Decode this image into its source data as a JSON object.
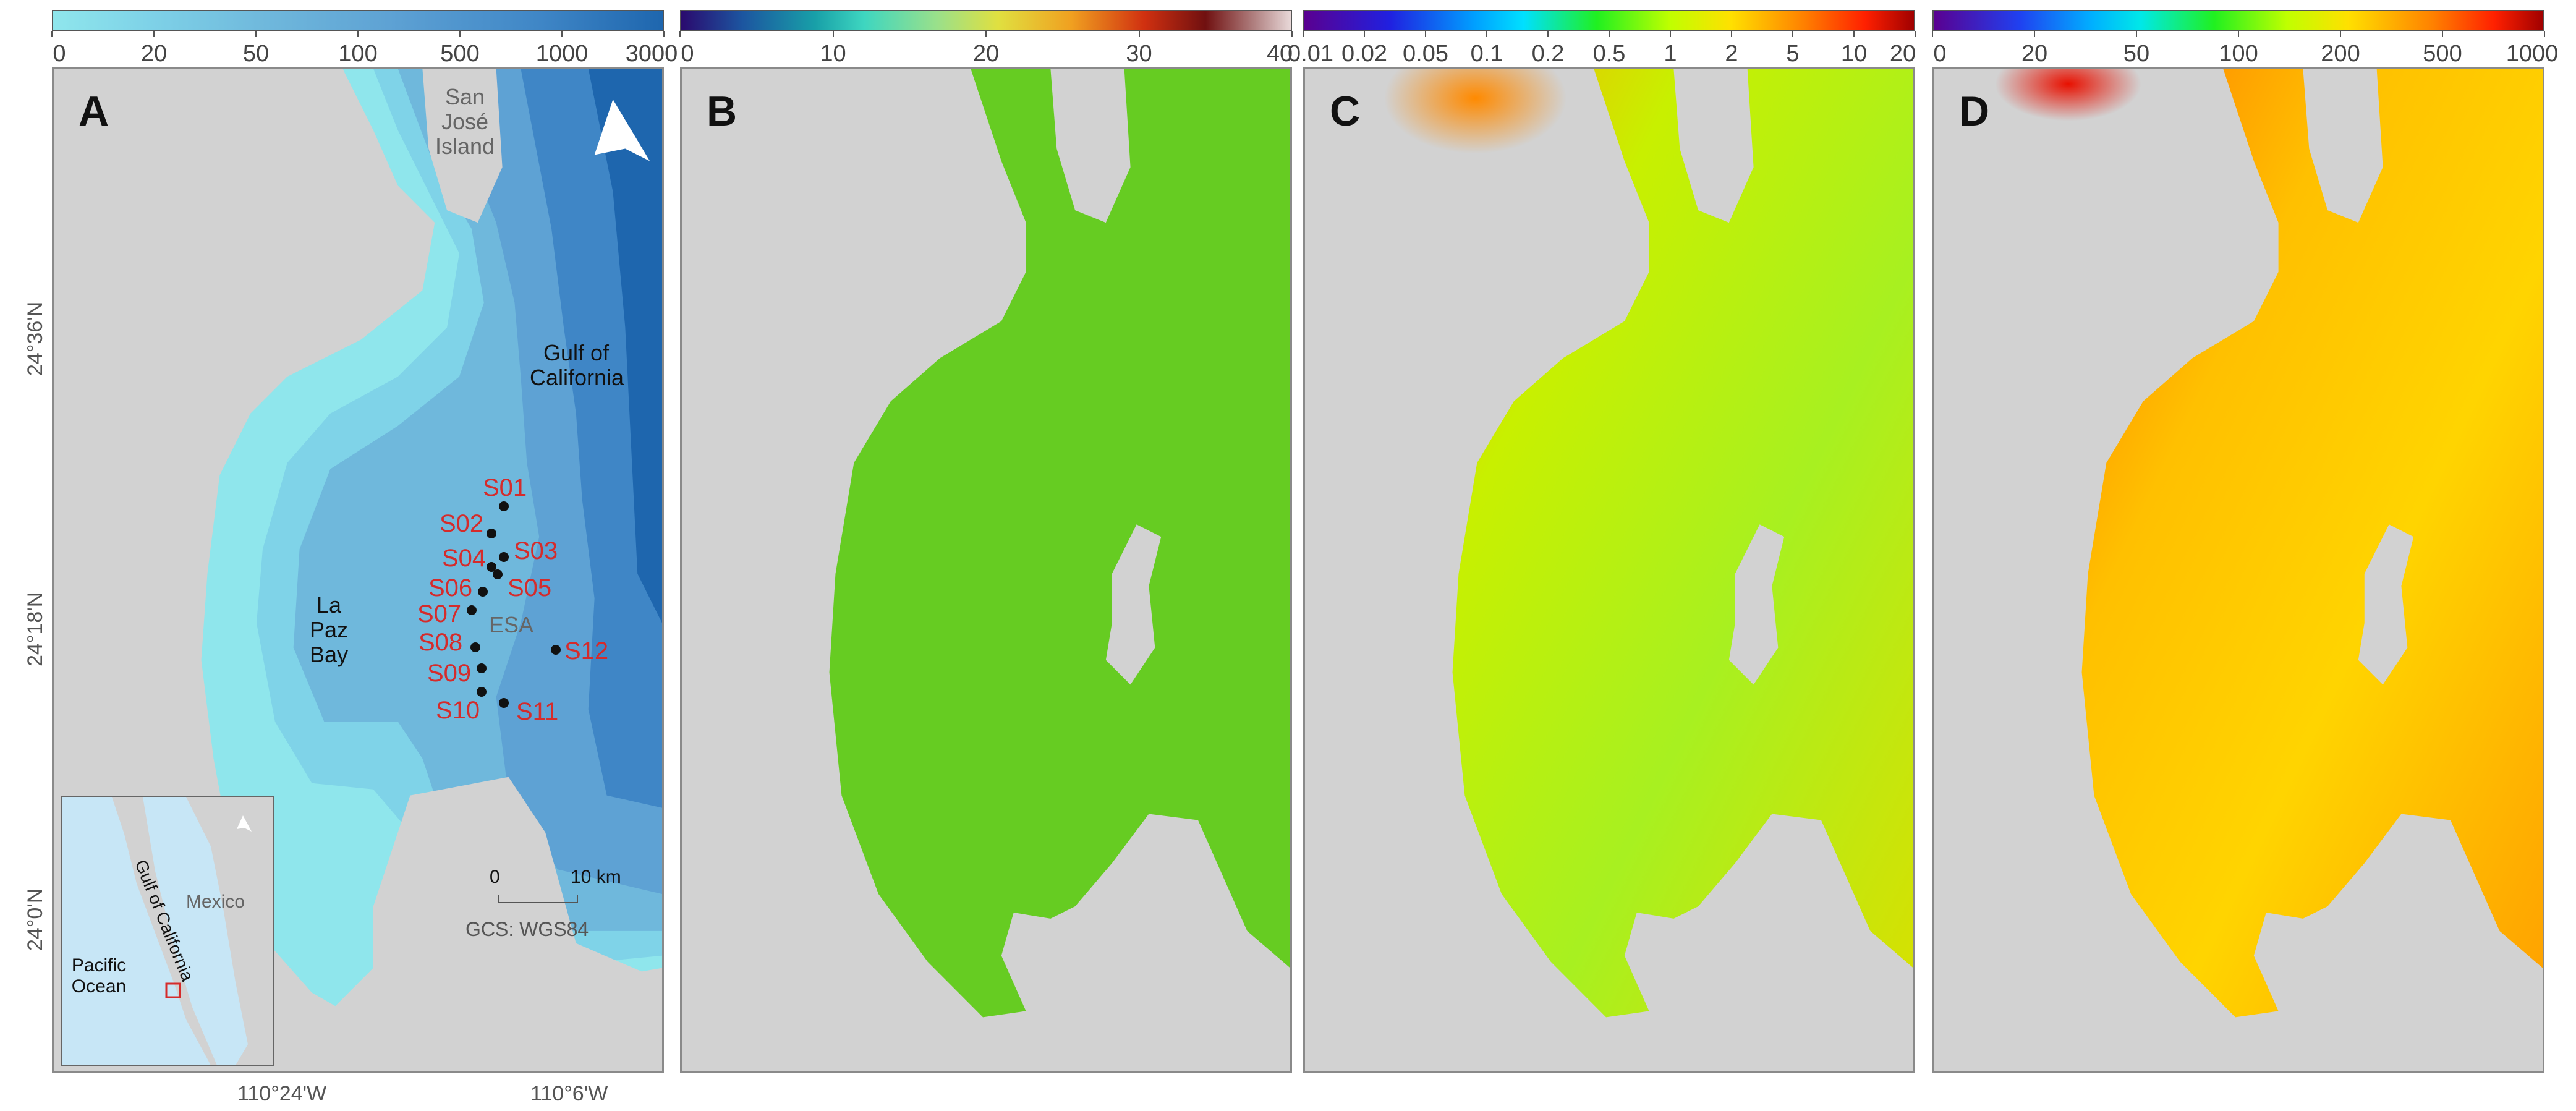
{
  "colorbars": [
    {
      "ticks": [
        "0",
        "20",
        "50",
        "100",
        "500",
        "1000",
        "3000"
      ]
    },
    {
      "ticks": [
        "0",
        "10",
        "20",
        "30",
        "40"
      ]
    },
    {
      "ticks": [
        "0.01",
        "0.02",
        "0.05",
        "0.1",
        "0.2",
        "0.5",
        "1",
        "2",
        "5",
        "10",
        "20"
      ]
    },
    {
      "ticks": [
        "0",
        "20",
        "50",
        "100",
        "200",
        "500",
        "1000"
      ]
    }
  ],
  "panels": {
    "a": {
      "label": "A",
      "places": {
        "island": "San José Island",
        "gulf": "Gulf of California",
        "bay": "La Paz Bay",
        "esa": "ESA"
      },
      "stations": [
        "S01",
        "S02",
        "S03",
        "S04",
        "S05",
        "S06",
        "S07",
        "S08",
        "S09",
        "S10",
        "S11",
        "S12"
      ],
      "scalebar": {
        "start": "0",
        "end": "10 km"
      },
      "gcs": "GCS: WGS84",
      "inset": {
        "country": "Mexico",
        "ocean": "Pacific Ocean",
        "gulf": "Gulf of California"
      }
    },
    "b": {
      "label": "B"
    },
    "c": {
      "label": "C"
    },
    "d": {
      "label": "D"
    }
  },
  "axes": {
    "lat_labels": [
      "24°36'N",
      "24°18'N",
      "24°0'N"
    ],
    "lon_labels": [
      "110°24'W",
      "110°6'W"
    ]
  },
  "colors": {
    "land": "#d2d2d2",
    "station_label": "#d52b2b",
    "panel_b_fill": "#66cc22"
  }
}
